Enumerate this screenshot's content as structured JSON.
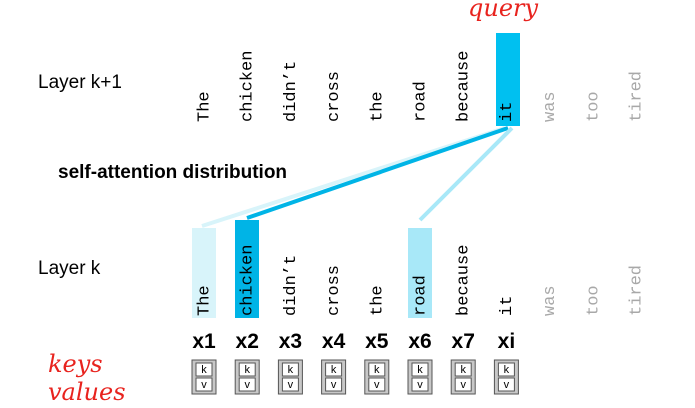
{
  "query_label": "query",
  "layer_top": {
    "label": "Layer k+1",
    "tokens": [
      "The",
      "chicken",
      "didn’t",
      "cross",
      "the",
      "road",
      "because",
      "it",
      "was",
      "too",
      "tired"
    ]
  },
  "caption": "self-attention distribution",
  "layer_bottom": {
    "label": "Layer k",
    "tokens": [
      "The",
      "chicken",
      "didn’t",
      "cross",
      "the",
      "road",
      "because",
      "it",
      "was",
      "too",
      "tired"
    ]
  },
  "x_labels": [
    "x1",
    "x2",
    "x3",
    "x4",
    "x5",
    "x6",
    "x7",
    "xi"
  ],
  "keys_label": "keys",
  "values_label": "values",
  "kv_boxes": [
    {
      "k": "k",
      "v": "v"
    },
    {
      "k": "k",
      "v": "v"
    },
    {
      "k": "k",
      "v": "v"
    },
    {
      "k": "k",
      "v": "v"
    },
    {
      "k": "k",
      "v": "v"
    },
    {
      "k": "k",
      "v": "v"
    },
    {
      "k": "k",
      "v": "v"
    },
    {
      "k": "k",
      "v": "v"
    }
  ]
}
